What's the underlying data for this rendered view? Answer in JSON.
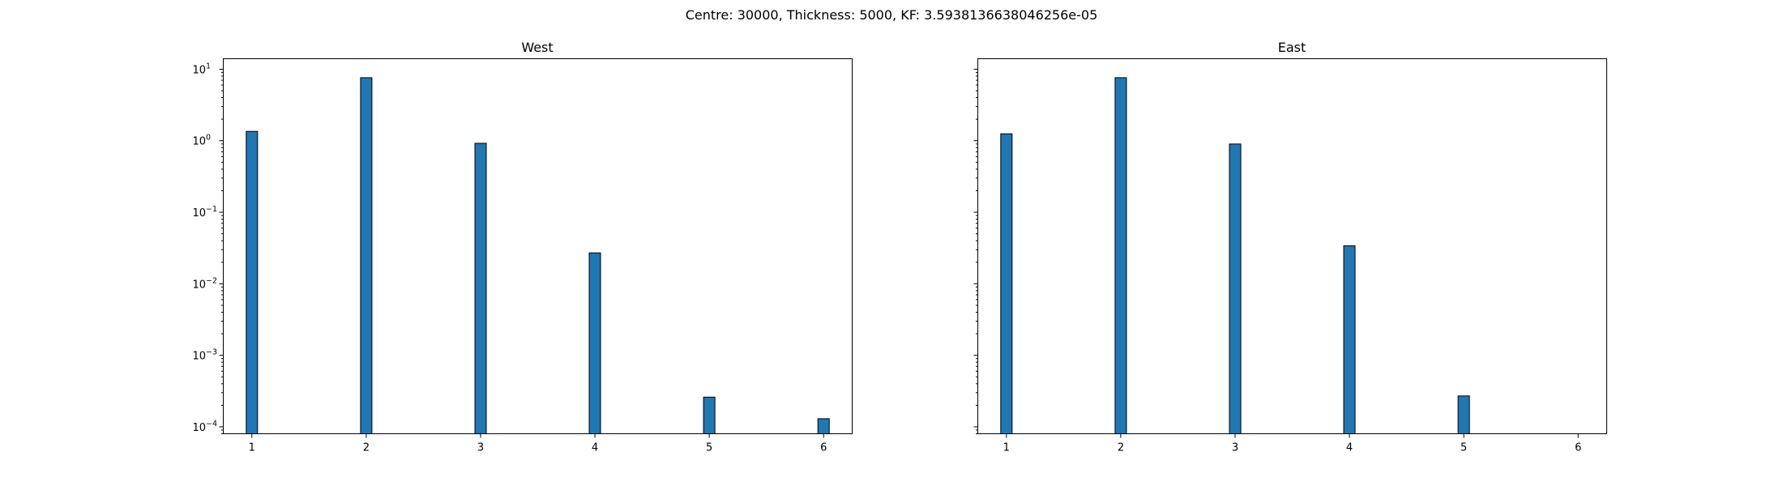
{
  "figure": {
    "suptitle": "Centre: 30000, Thickness: 5000, KF: 3.5938136638046256e-05"
  },
  "colors": {
    "bar_fill": "#1f77b4",
    "edge": "#000000"
  },
  "chart_data": [
    {
      "type": "bar",
      "title": "West",
      "xlabel": "",
      "ylabel": "",
      "yscale": "log",
      "ylim": [
        8e-05,
        14
      ],
      "xlim": [
        0.75,
        6.25
      ],
      "grid": false,
      "x": [
        1,
        2,
        3,
        4,
        5,
        6
      ],
      "values": [
        1.35,
        7.6,
        0.92,
        0.027,
        0.00026,
        0.00013
      ],
      "xticks": [
        "1",
        "2",
        "3",
        "4",
        "5",
        "6"
      ],
      "yticks": [
        {
          "base": "10",
          "exp": "1",
          "value": 10
        },
        {
          "base": "10",
          "exp": "0",
          "value": 1
        },
        {
          "base": "10",
          "exp": "−1",
          "value": 0.1
        },
        {
          "base": "10",
          "exp": "−2",
          "value": 0.01
        },
        {
          "base": "10",
          "exp": "−3",
          "value": 0.001
        },
        {
          "base": "10",
          "exp": "−4",
          "value": 0.0001
        }
      ]
    },
    {
      "type": "bar",
      "title": "East",
      "xlabel": "",
      "ylabel": "",
      "yscale": "log",
      "ylim": [
        8e-05,
        14
      ],
      "xlim": [
        0.75,
        6.25
      ],
      "grid": false,
      "x": [
        1,
        2,
        3,
        4,
        5
      ],
      "values": [
        1.25,
        7.6,
        0.9,
        0.034,
        0.00027
      ],
      "xticks": [
        "1",
        "2",
        "3",
        "4",
        "5",
        "6"
      ],
      "yticks": []
    }
  ]
}
